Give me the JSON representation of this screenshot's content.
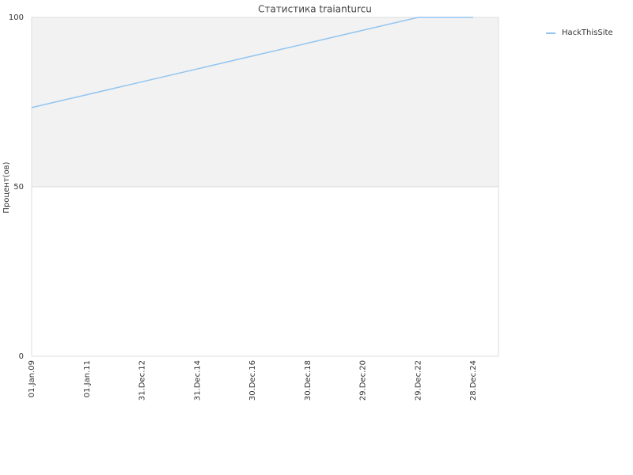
{
  "chart_data": {
    "type": "line",
    "title": "Статистика traianturcu",
    "y_label": "Процент(ов)",
    "categories": [
      "01.Jan.09",
      "01.Jan.11",
      "31.Dec.12",
      "31.Dec.14",
      "30.Dec.16",
      "30.Dec.18",
      "29.Dec.20",
      "29.Dec.22",
      "28.Dec.24"
    ],
    "series": [
      {
        "name": "HackThisSite",
        "color": "#92c5f0",
        "values": [
          73.4,
          77.2,
          81.0,
          84.8,
          88.6,
          92.4,
          96.2,
          100,
          100
        ]
      }
    ],
    "ylim": [
      0,
      100
    ],
    "yticks": [
      0,
      50,
      100
    ],
    "grid": true,
    "legend": "top-right"
  }
}
